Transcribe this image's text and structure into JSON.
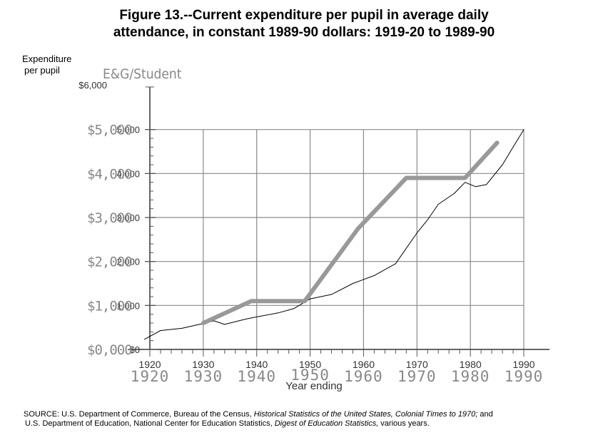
{
  "title_line1": "Figure 13.--Current expenditure per pupil in average daily",
  "title_line2": "attendance, in constant 1989-90 dollars:  1919-20 to 1989-90",
  "ylabel_line1": "Expenditure",
  "ylabel_line2": "per pupil",
  "overlay_label": "E&G/Student",
  "source": {
    "prefix": "SOURCE:  U.S. Department of Commerce, Bureau of the Census, ",
    "italic1": "Historical Statistics of the United States, Colonial Times to 1970;",
    "mid": "  and",
    "line2_prefix": "U.S. Department of Education, National Center for Education Statistics, ",
    "italic2": "Digest of Education Statistics,",
    "suffix": "  various years."
  },
  "chart_data": {
    "type": "line",
    "title": "Figure 13.--Current expenditure per pupil in average daily attendance, in constant 1989-90 dollars:  1919-20 to 1989-90",
    "xlabel": "Year ending",
    "ylabel": "Expenditure per pupil",
    "xlim": [
      1919,
      1990
    ],
    "ylim": [
      0,
      6000
    ],
    "y_tick_labels": [
      "$0",
      "1,000",
      "2,000",
      "3,000",
      "4,000",
      "5,000",
      "$6,000"
    ],
    "y_overlay_tick_labels": [
      "$0,000",
      "$1,000",
      "$2,000",
      "$3,000",
      "$4,000",
      "$5,000"
    ],
    "x_tick_labels": [
      "1920",
      "1930",
      "1940",
      "1950",
      "1960",
      "1970",
      "1980",
      "1990"
    ],
    "grid": true,
    "series": [
      {
        "color": "#000000",
        "points": [
          [
            1919,
            230
          ],
          [
            1922,
            430
          ],
          [
            1926,
            480
          ],
          [
            1930,
            590
          ],
          [
            1932,
            650
          ],
          [
            1934,
            570
          ],
          [
            1938,
            690
          ],
          [
            1940,
            740
          ],
          [
            1944,
            830
          ],
          [
            1947,
            930
          ],
          [
            1950,
            1150
          ],
          [
            1954,
            1250
          ],
          [
            1958,
            1500
          ],
          [
            1962,
            1680
          ],
          [
            1966,
            1950
          ],
          [
            1970,
            2650
          ],
          [
            1972,
            2950
          ],
          [
            1974,
            3300
          ],
          [
            1977,
            3550
          ],
          [
            1979,
            3800
          ],
          [
            1981,
            3700
          ],
          [
            1983,
            3750
          ],
          [
            1986,
            4200
          ],
          [
            1988,
            4600
          ],
          [
            1990,
            5000
          ]
        ]
      },
      {
        "color": "#999999",
        "points": [
          [
            1930,
            600
          ],
          [
            1939,
            1100
          ],
          [
            1949,
            1100
          ],
          [
            1959,
            2750
          ],
          [
            1968,
            3900
          ],
          [
            1979,
            3900
          ],
          [
            1985,
            4700
          ]
        ]
      }
    ]
  }
}
